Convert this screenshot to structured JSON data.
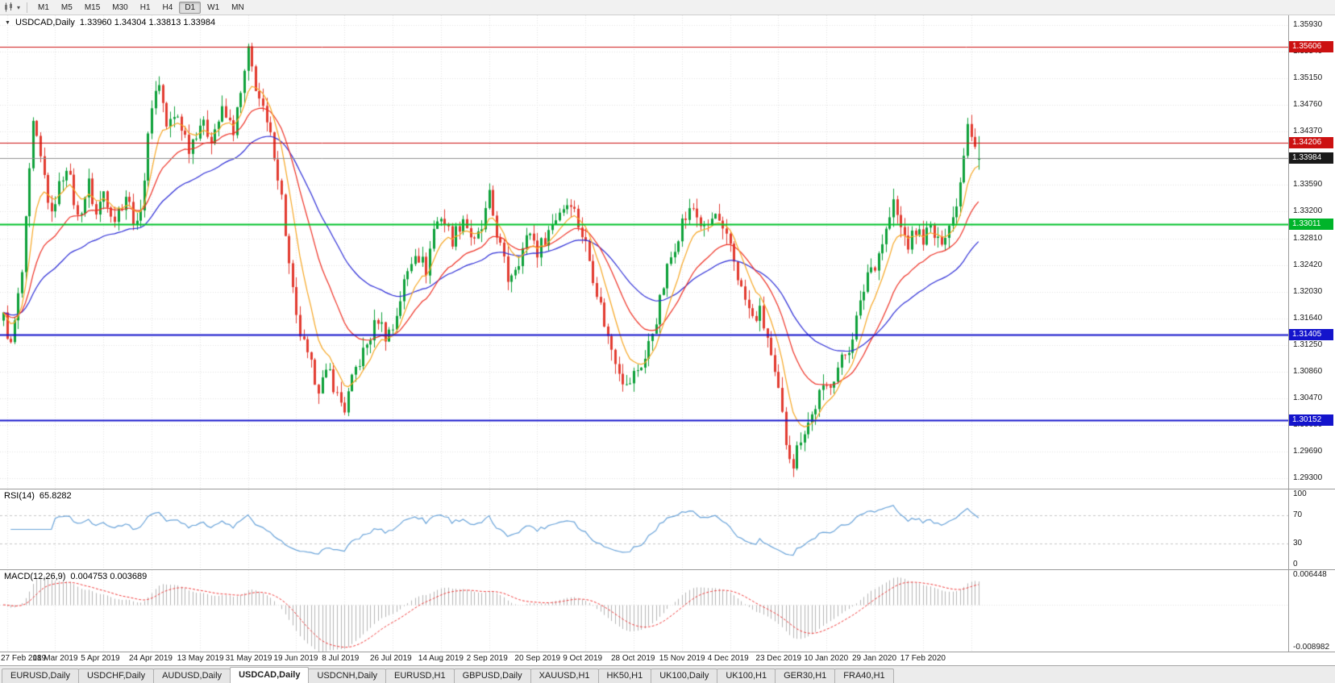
{
  "toolbar": {
    "timeframes": [
      "M1",
      "M5",
      "M15",
      "M30",
      "H1",
      "H4",
      "D1",
      "W1",
      "MN"
    ],
    "active_timeframe": "D1"
  },
  "chart": {
    "symbol_timeframe": "USDCAD,Daily",
    "open": "1.33960",
    "high": "1.34304",
    "low": "1.33813",
    "close": "1.33984",
    "ohlc_text": "1.33960 1.34304 1.33813 1.33984"
  },
  "price_axis": {
    "labels": [
      "1.35930",
      "1.35540",
      "1.35150",
      "1.34760",
      "1.34370",
      "1.33980",
      "1.33590",
      "1.33200",
      "1.32810",
      "1.32420",
      "1.32030",
      "1.31640",
      "1.31250",
      "1.30860",
      "1.30470",
      "1.30080",
      "1.29690",
      "1.29300"
    ],
    "badges": [
      {
        "text": "1.35606",
        "price": 1.35606,
        "color": "#cc1111",
        "text_color": "#ffffff"
      },
      {
        "text": "1.34206",
        "price": 1.34206,
        "color": "#cc1111",
        "text_color": "#ffffff"
      },
      {
        "text": "1.33984",
        "price": 1.33984,
        "color": "#1a1a1a",
        "text_color": "#ffffff"
      },
      {
        "text": "1.33011",
        "price": 1.33011,
        "color": "#00b42a",
        "text_color": "#ffffff"
      },
      {
        "text": "1.31405",
        "price": 1.31405,
        "color": "#1414cc",
        "text_color": "#ffffff"
      },
      {
        "text": "1.30152",
        "price": 1.30152,
        "color": "#1414cc",
        "text_color": "#ffffff"
      }
    ]
  },
  "hlines": [
    {
      "price": 1.35606,
      "color": "#cc1111",
      "width": 1
    },
    {
      "price": 1.34206,
      "color": "#cc1111",
      "width": 1
    },
    {
      "price": 1.33984,
      "color": "#8f8f8f",
      "width": 1
    },
    {
      "price": 1.33011,
      "color": "#00c22b",
      "width": 2
    },
    {
      "price": 1.31405,
      "color": "#1414cc",
      "width": 2
    },
    {
      "price": 1.30152,
      "color": "#1414cc",
      "width": 2
    }
  ],
  "rsi_panel": {
    "name": "RSI(14)",
    "value": "65.8282",
    "axis_labels": [
      "100",
      "70",
      "30",
      "0"
    ],
    "levels": [
      70,
      30
    ],
    "range": [
      0,
      100
    ]
  },
  "macd_panel": {
    "name": "MACD(12,26,9)",
    "values": "0.004753 0.003689",
    "axis_labels": [
      "0.006448",
      "-0.008982"
    ],
    "range": [
      -0.008982,
      0.006448
    ]
  },
  "date_axis": [
    "27 Feb 2019",
    "18 Mar 2019",
    "5 Apr 2019",
    "24 Apr 2019",
    "13 May 2019",
    "31 May 2019",
    "19 Jun 2019",
    "8 Jul 2019",
    "26 Jul 2019",
    "14 Aug 2019",
    "2 Sep 2019",
    "20 Sep 2019",
    "9 Oct 2019",
    "28 Oct 2019",
    "15 Nov 2019",
    "4 Dec 2019",
    "23 Dec 2019",
    "10 Jan 2020",
    "29 Jan 2020",
    "17 Feb 2020"
  ],
  "tabs": {
    "labels": [
      "EURUSD,Daily",
      "USDCHF,Daily",
      "AUDUSD,Daily",
      "USDCAD,Daily",
      "USDCNH,Daily",
      "EURUSD,H1",
      "GBPUSD,Daily",
      "XAUUSD,H1",
      "HK50,H1",
      "UK100,Daily",
      "UK100,H1",
      "GER30,H1",
      "FRA40,H1"
    ],
    "active": "USDCAD,Daily"
  },
  "colors": {
    "bull": "#0ea13a",
    "bear": "#e23b30",
    "ma_fast": "#f6a623",
    "ma_mid": "#ee3024",
    "ma_slow": "#2c2cd6",
    "rsi_line": "#69a3d9",
    "rsi_level": "#c6c6c6",
    "macd_hist": "#b5b5b5",
    "macd_signal": "#f03b3b",
    "grid": "#e3e3e3",
    "panel_border": "#9a9a9a",
    "axis_text": "#1a1a1a"
  },
  "chart_data": {
    "type": "candlestick",
    "symbol": "USDCAD",
    "timeframe": "Daily",
    "current_bar": {
      "open": 1.3396,
      "high": 1.34304,
      "low": 1.33813,
      "close": 1.33984
    },
    "bars_total": 264,
    "first_tick": 1,
    "tick_step": 13,
    "price_range_top": 1.3607,
    "price_range_bottom": 1.2915,
    "indicators": {
      "rsi": 65.8282,
      "macd_main": 0.004753,
      "macd_signal": 0.003689
    },
    "anchors": [
      [
        0,
        1.3165
      ],
      [
        2,
        1.3122
      ],
      [
        5,
        1.323
      ],
      [
        8,
        1.3445
      ],
      [
        11,
        1.337
      ],
      [
        13,
        1.331
      ],
      [
        14,
        1.334
      ],
      [
        17,
        1.339
      ],
      [
        20,
        1.331
      ],
      [
        23,
        1.336
      ],
      [
        25,
        1.3315
      ],
      [
        27,
        1.335
      ],
      [
        30,
        1.331
      ],
      [
        33,
        1.3345
      ],
      [
        36,
        1.3295
      ],
      [
        38,
        1.337
      ],
      [
        40,
        1.348
      ],
      [
        42,
        1.351
      ],
      [
        44,
        1.3445
      ],
      [
        47,
        1.346
      ],
      [
        50,
        1.3415
      ],
      [
        53,
        1.345
      ],
      [
        56,
        1.343
      ],
      [
        59,
        1.3465
      ],
      [
        62,
        1.344
      ],
      [
        64,
        1.349
      ],
      [
        66,
        1.3552
      ],
      [
        68,
        1.3505
      ],
      [
        71,
        1.3445
      ],
      [
        73,
        1.3408
      ],
      [
        75,
        1.334
      ],
      [
        77,
        1.324
      ],
      [
        79,
        1.316
      ],
      [
        82,
        1.3105
      ],
      [
        85,
        1.3065
      ],
      [
        88,
        1.3085
      ],
      [
        90,
        1.305
      ],
      [
        92,
        1.3032
      ],
      [
        95,
        1.309
      ],
      [
        98,
        1.3125
      ],
      [
        101,
        1.3165
      ],
      [
        103,
        1.314
      ],
      [
        105,
        1.315
      ],
      [
        108,
        1.3215
      ],
      [
        111,
        1.3265
      ],
      [
        114,
        1.3235
      ],
      [
        116,
        1.3295
      ],
      [
        118,
        1.3315
      ],
      [
        121,
        1.328
      ],
      [
        124,
        1.3312
      ],
      [
        127,
        1.3272
      ],
      [
        129,
        1.3295
      ],
      [
        131,
        1.334
      ],
      [
        133,
        1.329
      ],
      [
        136,
        1.3222
      ],
      [
        139,
        1.3252
      ],
      [
        142,
        1.3292
      ],
      [
        144,
        1.3262
      ],
      [
        147,
        1.3292
      ],
      [
        150,
        1.3322
      ],
      [
        153,
        1.3338
      ],
      [
        155,
        1.3302
      ],
      [
        157,
        1.3272
      ],
      [
        160,
        1.3205
      ],
      [
        163,
        1.3135
      ],
      [
        166,
        1.3092
      ],
      [
        168,
        1.3062
      ],
      [
        170,
        1.3082
      ],
      [
        173,
        1.3105
      ],
      [
        176,
        1.3165
      ],
      [
        179,
        1.3235
      ],
      [
        181,
        1.3272
      ],
      [
        183,
        1.3305
      ],
      [
        186,
        1.3325
      ],
      [
        189,
        1.3292
      ],
      [
        192,
        1.3315
      ],
      [
        194,
        1.3285
      ],
      [
        196,
        1.3272
      ],
      [
        199,
        1.3205
      ],
      [
        202,
        1.3162
      ],
      [
        204,
        1.3172
      ],
      [
        206,
        1.3135
      ],
      [
        208,
        1.3075
      ],
      [
        209,
        1.3055
      ],
      [
        211,
        1.2985
      ],
      [
        213,
        1.2952
      ],
      [
        215,
        1.2992
      ],
      [
        218,
        1.3022
      ],
      [
        220,
        1.3052
      ],
      [
        222,
        1.3062
      ],
      [
        225,
        1.3092
      ],
      [
        228,
        1.3122
      ],
      [
        231,
        1.3182
      ],
      [
        233,
        1.3232
      ],
      [
        235,
        1.3245
      ],
      [
        238,
        1.3292
      ],
      [
        240,
        1.3332
      ],
      [
        242,
        1.3295
      ],
      [
        244,
        1.3272
      ],
      [
        246,
        1.3292
      ],
      [
        248,
        1.3282
      ],
      [
        250,
        1.3295
      ],
      [
        252,
        1.3272
      ],
      [
        254,
        1.3292
      ],
      [
        256,
        1.331
      ],
      [
        258,
        1.3365
      ],
      [
        260,
        1.3455
      ],
      [
        262,
        1.342
      ],
      [
        263,
        1.33984
      ]
    ]
  }
}
